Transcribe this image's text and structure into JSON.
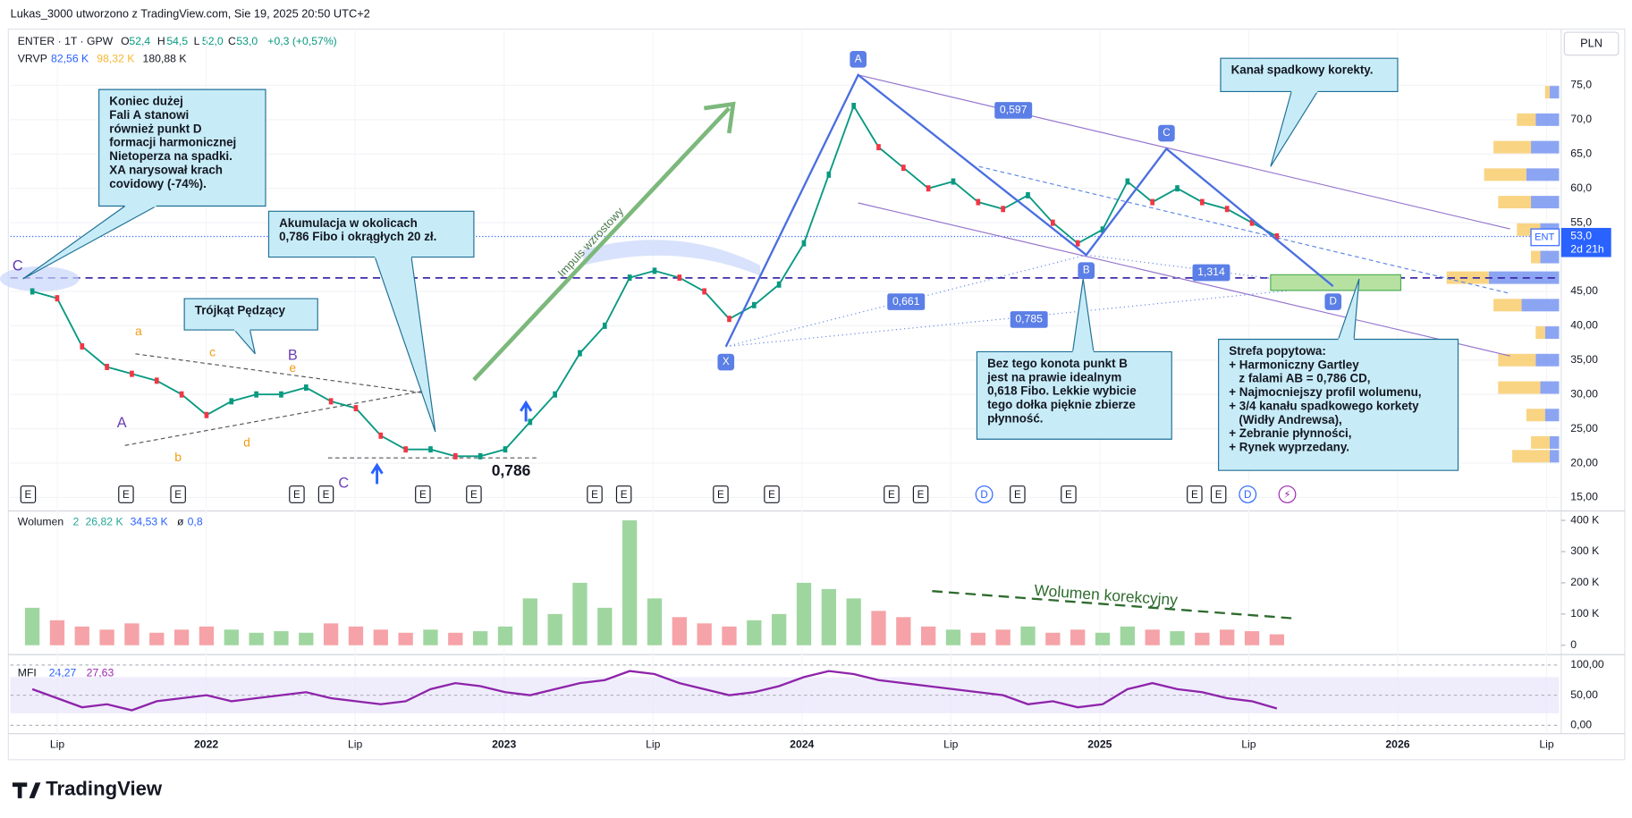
{
  "header": {
    "author_line": "Lukas_3000 utworzono z TradingView.com, Sie 19, 2025 20:50 UTC+2"
  },
  "legend": {
    "symbol": "ENTER · 1T · GPW",
    "open_label": "O",
    "open": "52,4",
    "high_label": "H",
    "high": "54,5",
    "low_label": "L",
    "low": "52,0",
    "close_label": "C",
    "close": "53,0",
    "change": "+0,3 (+0,57%)",
    "vrvp": "VRVP",
    "vrvp_values": [
      "82,56 K",
      "98,32 K",
      "180,88 K"
    ]
  },
  "price_axis": {
    "currency": "PLN",
    "ticks": [
      {
        "value": 75,
        "label": "75,0"
      },
      {
        "value": 70,
        "label": "70,0"
      },
      {
        "value": 65,
        "label": "65,0"
      },
      {
        "value": 60,
        "label": "60,0"
      },
      {
        "value": 55,
        "label": "55,0"
      },
      {
        "value": 45,
        "label": "45,00"
      },
      {
        "value": 40,
        "label": "40,00"
      },
      {
        "value": 35,
        "label": "35,00"
      },
      {
        "value": 30,
        "label": "30,00"
      },
      {
        "value": 25,
        "label": "25,00"
      },
      {
        "value": 20,
        "label": "20,00"
      },
      {
        "value": 15,
        "label": "15,00"
      }
    ]
  },
  "last_price": {
    "symbol": "ENT",
    "price": "53,0",
    "countdown": "2d 21h"
  },
  "time_axis": {
    "labels": [
      "Lip",
      "2022",
      "Lip",
      "2023",
      "Lip",
      "2024",
      "Lip",
      "2025",
      "Lip",
      "2026",
      "Lip"
    ]
  },
  "price_line": {
    "color": "#089981",
    "values": [
      45,
      44,
      37,
      34,
      33,
      32,
      30,
      27,
      29,
      30,
      30,
      31,
      29,
      28,
      24,
      22,
      22,
      21,
      21,
      22,
      26,
      30,
      36,
      40,
      47,
      48,
      47,
      45,
      41,
      43,
      46,
      52,
      62,
      72,
      66,
      63,
      60,
      61,
      58,
      57,
      59,
      55,
      52,
      54,
      61,
      58,
      60,
      58,
      57,
      55,
      53
    ]
  },
  "volume": {
    "title": "Wolumen",
    "length": "2",
    "value_1": "26,82 K",
    "value_2": "34,53 K",
    "symbol": "ø",
    "value_3": "0,8",
    "ticks": [
      {
        "value": 400000,
        "label": "400 K"
      },
      {
        "value": 300000,
        "label": "300 K"
      },
      {
        "value": 200000,
        "label": "200 K"
      },
      {
        "value": 100000,
        "label": "100 K"
      },
      0
    ],
    "values": [
      120000,
      80000,
      60000,
      50000,
      70000,
      40000,
      50000,
      60000,
      50000,
      40000,
      45000,
      40000,
      70000,
      60000,
      50000,
      40000,
      50000,
      40000,
      45000,
      60000,
      150000,
      100000,
      200000,
      120000,
      400000,
      150000,
      90000,
      70000,
      60000,
      80000,
      100000,
      200000,
      180000,
      150000,
      110000,
      90000,
      60000,
      50000,
      40000,
      50000,
      60000,
      40000,
      50000,
      40000,
      60000,
      50000,
      45000,
      40000,
      50000,
      45000,
      35000
    ],
    "annotation": "Wolumen korekcyjny"
  },
  "mfi": {
    "title": "MFI",
    "value_1": "24,27",
    "value_2": "27,63",
    "ticks": [
      {
        "value": 100,
        "label": "100,00"
      },
      {
        "value": 50,
        "label": "50,00"
      },
      {
        "value": 0,
        "label": "0,00"
      }
    ],
    "values": [
      60,
      45,
      30,
      35,
      25,
      40,
      45,
      50,
      40,
      45,
      50,
      55,
      45,
      40,
      35,
      40,
      60,
      70,
      65,
      55,
      50,
      60,
      70,
      75,
      90,
      85,
      70,
      60,
      50,
      55,
      65,
      80,
      90,
      85,
      75,
      70,
      65,
      60,
      55,
      50,
      35,
      40,
      30,
      35,
      60,
      70,
      60,
      55,
      45,
      40,
      28
    ]
  },
  "volume_profile": {
    "rows": [
      {
        "price": 74,
        "up": 10,
        "down": 5
      },
      {
        "price": 70,
        "up": 25,
        "down": 20
      },
      {
        "price": 66,
        "up": 30,
        "down": 40
      },
      {
        "price": 62,
        "up": 35,
        "down": 45
      },
      {
        "price": 58,
        "up": 30,
        "down": 35
      },
      {
        "price": 54,
        "up": 20,
        "down": 25
      },
      {
        "price": 50,
        "up": 20,
        "down": 10
      },
      {
        "price": 47,
        "up": 75,
        "down": 45
      },
      {
        "price": 43,
        "up": 40,
        "down": 30
      },
      {
        "price": 39,
        "up": 15,
        "down": 10
      },
      {
        "price": 35,
        "up": 25,
        "down": 40
      },
      {
        "price": 31,
        "up": 20,
        "down": 45
      },
      {
        "price": 27,
        "up": 15,
        "down": 20
      },
      {
        "price": 23,
        "up": 10,
        "down": 20
      },
      {
        "price": 21,
        "up": 10,
        "down": 40
      }
    ]
  },
  "event_markers": [
    "E",
    "E",
    "E",
    "E",
    "E",
    "E",
    "E",
    "E",
    "E",
    "E",
    "E",
    "E",
    "E",
    "D",
    "E",
    "E",
    "E",
    "E",
    "D",
    "⚡"
  ],
  "pattern": {
    "points": [
      "X",
      "A",
      "B",
      "C",
      "D"
    ],
    "left_point": "C",
    "fib_labels": [
      "0,597",
      "0,661",
      "0,785",
      "1,314"
    ],
    "fib_level": "0,786",
    "wave_labels": [
      "a",
      "b",
      "c",
      "d",
      "e",
      "A",
      "B",
      "C"
    ],
    "impulse": "Impuls wzrostowy"
  },
  "callouts": [
    {
      "lines": [
        "Koniec dużej",
        "Fali A stanowi",
        "również punkt D",
        "formacji harmonicznej",
        "Nietoperza na spadki.",
        "XA narysował krach",
        "covidowy (-74%)."
      ]
    },
    {
      "lines": [
        "Akumulacja w okolicach",
        "0,786 Fibo i okrągłych 20 zł."
      ]
    },
    {
      "lines": [
        "Trójkąt Pędzący"
      ]
    },
    {
      "lines": [
        "Bez tego konota punkt B",
        "jest na prawie idealnym",
        "0,618 Fibo. Lekkie wybicie",
        "tego dołka pięknie zbierze",
        "płynność."
      ]
    },
    {
      "lines": [
        "Strefa popytowa:",
        "+ Harmoniczny Gartley",
        "   z falami AB = 0,786 CD,",
        "+ Najmocniejszy profil wolumenu,",
        "+ 3/4 kanału spadkowego korkety",
        "   (Widły Andrewsa),",
        "+ Zebranie płynności,",
        "+ Rynek wyprzedany."
      ]
    },
    {
      "lines": [
        "Kanał spadkowy korekty."
      ]
    }
  ],
  "footer": {
    "brand": "TradingView"
  }
}
